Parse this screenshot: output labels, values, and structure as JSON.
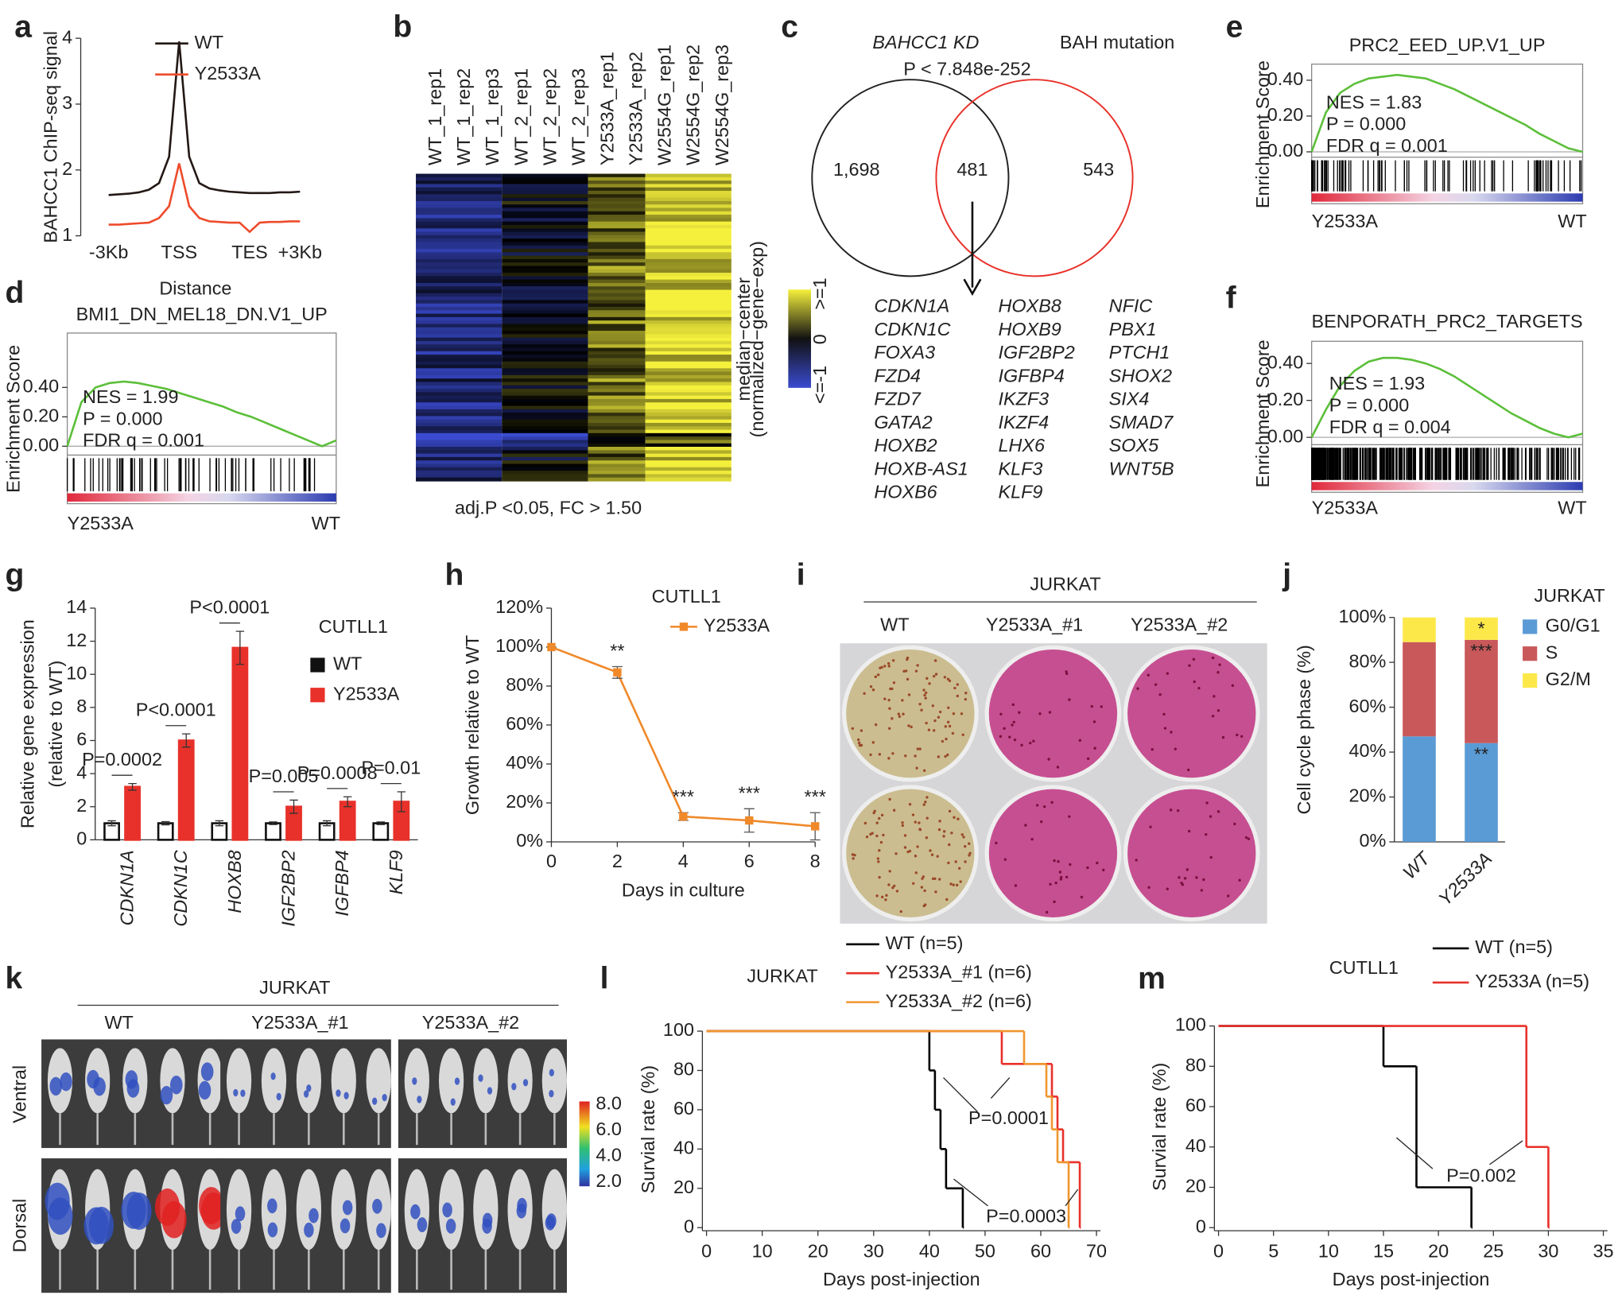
{
  "chart_data": [
    {
      "panel": "a",
      "type": "line",
      "ylabel": "BAHCC1 ChIP-seq signal",
      "xlabel": "Distance",
      "categories": [
        "-3Kb",
        null,
        null,
        null,
        null,
        null,
        null,
        "TSS",
        null,
        null,
        null,
        null,
        null,
        null,
        "TES",
        null,
        null,
        null,
        null,
        "+3Kb"
      ],
      "series": [
        {
          "name": "WT",
          "color": "#231815",
          "values": [
            1.62,
            1.63,
            1.64,
            1.66,
            1.7,
            1.8,
            2.2,
            3.95,
            2.2,
            1.8,
            1.72,
            1.69,
            1.67,
            1.66,
            1.65,
            1.65,
            1.65,
            1.66,
            1.66,
            1.67
          ]
        },
        {
          "name": "Y2533A",
          "color": "#ee4b2b",
          "values": [
            1.17,
            1.17,
            1.18,
            1.19,
            1.2,
            1.27,
            1.45,
            2.1,
            1.45,
            1.27,
            1.22,
            1.21,
            1.2,
            1.2,
            1.06,
            1.2,
            1.21,
            1.21,
            1.22,
            1.22
          ]
        }
      ],
      "ylim": [
        1,
        4
      ],
      "yticks": [
        1,
        2,
        3,
        4
      ]
    },
    {
      "panel": "d",
      "type": "line",
      "title": "BMI1_DN_MEL18_DN.V1_UP",
      "ylabel": "Enrichment Score",
      "color": "#5cbf3a",
      "values": [
        0,
        0.3,
        0.4,
        0.43,
        0.44,
        0.43,
        0.41,
        0.39,
        0.36,
        0.33,
        0.3,
        0.27,
        0.23,
        0.2,
        0.16,
        0.12,
        0.08,
        0.04,
        0.0,
        0.04
      ],
      "ylim": [
        -0.06,
        0.77
      ],
      "yticks": [
        {
          "value": 0.4,
          "label": "0.40"
        },
        {
          "value": 0.2,
          "label": "0.20"
        },
        {
          "value": 0,
          "label": "0.00"
        }
      ],
      "stats": [
        "NES = 1.99",
        "P = 0.000",
        "FDR q  = 0.001"
      ],
      "x_end_labels": [
        "Y2533A",
        "WT"
      ]
    },
    {
      "panel": "e",
      "type": "line",
      "title": "PRC2_EED_UP.V1_UP",
      "ylabel": "Enrichment Score",
      "color": "#5cbf3a",
      "values": [
        0,
        0.22,
        0.33,
        0.38,
        0.41,
        0.42,
        0.43,
        0.42,
        0.41,
        0.38,
        0.35,
        0.31,
        0.27,
        0.23,
        0.19,
        0.15,
        0.1,
        0.06,
        0.02,
        0.0
      ],
      "ylim": [
        -0.03,
        0.49
      ],
      "yticks": [
        {
          "value": 0.4,
          "label": "0.40"
        },
        {
          "value": 0.2,
          "label": "0.20"
        },
        {
          "value": 0,
          "label": "0.00"
        }
      ],
      "stats": [
        "NES = 1.83",
        "P = 0.000",
        "FDR q  = 0.001"
      ],
      "x_end_labels": [
        "Y2533A",
        "WT"
      ]
    },
    {
      "panel": "f",
      "type": "line",
      "title": "BENPORATH_PRC2_TARGETS",
      "ylabel": "Enrichment Score",
      "color": "#5cbf3a",
      "values": [
        0,
        0.15,
        0.28,
        0.36,
        0.41,
        0.43,
        0.43,
        0.42,
        0.4,
        0.37,
        0.33,
        0.28,
        0.23,
        0.18,
        0.13,
        0.09,
        0.05,
        0.02,
        0.0,
        0.02
      ],
      "ylim": [
        -0.04,
        0.52
      ],
      "yticks": [
        {
          "value": 0.4,
          "label": "0.40"
        },
        {
          "value": 0.2,
          "label": "0.20"
        },
        {
          "value": 0,
          "label": "0.00"
        }
      ],
      "stats": [
        "NES = 1.93",
        "P = 0.000",
        "FDR q  = 0.004"
      ],
      "x_end_labels": [
        "Y2533A",
        "WT"
      ]
    },
    {
      "panel": "g",
      "type": "bar",
      "title": "CUTLL1",
      "ylabel": [
        "Relative gene expression",
        "(relative to WT)"
      ],
      "categories": [
        "CDKN1A",
        "CDKN1C",
        "HOXB8",
        "IGF2BP2",
        "IGFBP4",
        "KLF9"
      ],
      "series": [
        {
          "name": "WT",
          "color": "#111111",
          "values": [
            1,
            1,
            1,
            1,
            1,
            1
          ],
          "errors": [
            0.15,
            0.1,
            0.15,
            0.08,
            0.15,
            0.08
          ]
        },
        {
          "name": "Y2533A",
          "color": "#e8312a",
          "values": [
            3.2,
            6.0,
            11.6,
            2.0,
            2.3,
            2.3
          ],
          "errors": [
            0.2,
            0.4,
            1.0,
            0.4,
            0.3,
            0.6
          ]
        }
      ],
      "p_labels": [
        "P=0.0002",
        "P<0.0001",
        "P<0.0001",
        "P=0.005",
        "P=0.0008",
        "P=0.01"
      ],
      "ylim": [
        0,
        14
      ],
      "yticks": [
        0,
        2,
        4,
        6,
        8,
        10,
        12,
        14
      ]
    },
    {
      "panel": "h",
      "type": "line",
      "title": "CUTLL1",
      "xlabel": "Days in culture",
      "ylabel": "Growth relative to WT",
      "x": [
        0,
        2,
        4,
        6,
        8
      ],
      "series": [
        {
          "name": "Y2533A",
          "color": "#f0892a",
          "values": [
            100,
            87,
            13,
            11,
            8
          ],
          "errors": [
            0,
            3,
            2,
            6,
            7
          ],
          "significance": [
            null,
            "**",
            "***",
            "***",
            "***"
          ]
        }
      ],
      "xlim": [
        0,
        8
      ],
      "xticks": [
        0,
        2,
        4,
        6,
        8
      ],
      "ylim": [
        0,
        120
      ],
      "yticks": [
        {
          "value": 0,
          "label": "0%"
        },
        {
          "value": 20,
          "label": "20%"
        },
        {
          "value": 40,
          "label": "40%"
        },
        {
          "value": 60,
          "label": "60%"
        },
        {
          "value": 80,
          "label": "80%"
        },
        {
          "value": 100,
          "label": "100%"
        },
        {
          "value": 120,
          "label": "120%"
        }
      ]
    },
    {
      "panel": "j",
      "type": "bar",
      "stacked": true,
      "title": "JURKAT",
      "ylabel": "Cell cycle phase (%)",
      "categories": [
        "WT",
        "Y2533A"
      ],
      "series": [
        {
          "name": "G0/G1",
          "color": "#5b9bd5",
          "values": [
            47,
            44
          ],
          "significance": [
            null,
            "**"
          ]
        },
        {
          "name": "S",
          "color": "#c9585a",
          "values": [
            42,
            46
          ],
          "significance": [
            null,
            "***"
          ]
        },
        {
          "name": "G2/M",
          "color": "#fde84a",
          "values": [
            11,
            10
          ],
          "significance": [
            null,
            "*"
          ]
        }
      ],
      "ylim": [
        0,
        100
      ],
      "yticks": [
        {
          "value": 0,
          "label": "0%"
        },
        {
          "value": 20,
          "label": "20%"
        },
        {
          "value": 40,
          "label": "40%"
        },
        {
          "value": 60,
          "label": "60%"
        },
        {
          "value": 80,
          "label": "80%"
        },
        {
          "value": 100,
          "label": "100%"
        }
      ]
    },
    {
      "panel": "l",
      "type": "step",
      "title": "JURKAT",
      "xlabel": "Days post-injection",
      "ylabel": "Survial rate (%)",
      "series": [
        {
          "name": "WT (n=5)",
          "color": "#000000",
          "x": [
            0,
            40,
            41,
            42,
            43,
            46
          ],
          "values": [
            100,
            80,
            60,
            40,
            20,
            0
          ]
        },
        {
          "name": "Y2533A_#1 (n=6)",
          "color": "#e8312a",
          "x": [
            0,
            53,
            62,
            63,
            64,
            67
          ],
          "values": [
            100,
            83.3,
            66.7,
            50,
            33.3,
            0
          ]
        },
        {
          "name": "Y2533A_#2 (n=6)",
          "color": "#f0962e",
          "x": [
            0,
            57,
            61,
            62,
            63,
            65
          ],
          "values": [
            100,
            83.3,
            66.7,
            50,
            33.3,
            0
          ]
        }
      ],
      "annotations": [
        "P=0.0001",
        "P=0.0003"
      ],
      "xlim": [
        0,
        70
      ],
      "xticks": [
        0,
        10,
        20,
        30,
        40,
        50,
        60,
        70
      ],
      "ylim": [
        0,
        100
      ],
      "yticks": [
        0,
        20,
        40,
        60,
        80,
        100
      ]
    },
    {
      "panel": "m",
      "type": "step",
      "title": "CUTLL1",
      "xlabel": "Days post-injection",
      "ylabel": "Survial rate (%)",
      "series": [
        {
          "name": "WT (n=5)",
          "color": "#000000",
          "x": [
            0,
            15,
            18,
            23
          ],
          "values": [
            100,
            80,
            20,
            0
          ]
        },
        {
          "name": "Y2533A (n=5)",
          "color": "#e8312a",
          "x": [
            0,
            28,
            30
          ],
          "values": [
            100,
            40,
            0
          ]
        }
      ],
      "annotations": [
        "P=0.002"
      ],
      "xlim": [
        0,
        35
      ],
      "xticks": [
        0,
        5,
        10,
        15,
        20,
        25,
        30,
        35
      ],
      "ylim": [
        0,
        100
      ],
      "yticks": [
        0,
        20,
        40,
        60,
        80,
        100
      ]
    }
  ],
  "heatmap": {
    "panel": "b",
    "columns": [
      "WT_1_rep1",
      "WT_1_rep2",
      "WT_1_rep3",
      "WT_2_rep1",
      "WT_2_rep2",
      "WT_2_rep3",
      "Y2533A_rep1",
      "Y2533A_rep2",
      "W2554G_rep1",
      "W2554G_rep2",
      "W2554G_rep3"
    ],
    "scale_title": [
      "median−center",
      "(normalized−gene−exp)"
    ],
    "scale_labels": [
      ">=1",
      "0",
      "<=-1"
    ],
    "caption": "adj.P <0.05,  FC > 1.50"
  },
  "venn": {
    "panel": "c",
    "left_title": "BAHCC1 KD",
    "right_title": "BAH mutation",
    "p_value": "P < 7.848e-252",
    "left_only": "1,698",
    "overlap": "481",
    "right_only": "543",
    "genes": [
      [
        "CDKN1A",
        "CDKN1C",
        "FOXA3",
        "FZD4",
        "FZD7",
        "GATA2",
        "HOXB2",
        "HOXB-AS1",
        "HOXB6"
      ],
      [
        "HOXB8",
        "HOXB9",
        "IGF2BP2",
        "IGFBP4",
        "IKZF3",
        "IKZF4",
        "LHX6",
        "KLF3",
        "KLF9"
      ],
      [
        "NFIC",
        "PBX1",
        "PTCH1",
        "SHOX2",
        "SIX4",
        "SMAD7",
        "SOX5",
        "WNT5B"
      ]
    ]
  },
  "colony": {
    "panel": "i",
    "title": "JURKAT",
    "groups": [
      "WT",
      "Y2533A_#1",
      "Y2533A_#2"
    ]
  },
  "imaging": {
    "panel": "k",
    "title": "JURKAT",
    "groups": [
      "WT",
      "Y2533A_#1",
      "Y2533A_#2"
    ],
    "rows": [
      "Ventral",
      "Dorsal"
    ],
    "scale": [
      "8.0",
      "6.0",
      "4.0",
      "2.0"
    ]
  }
}
